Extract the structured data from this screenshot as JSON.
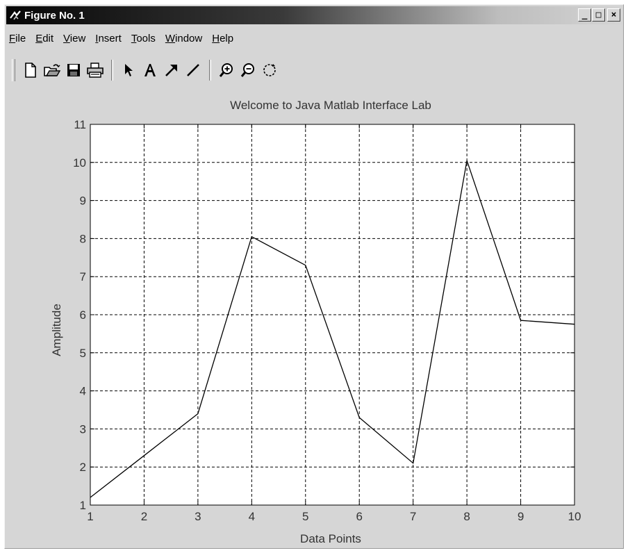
{
  "window": {
    "title": "Figure No. 1",
    "buttons": {
      "minimize": "_",
      "maximize": "□",
      "close": "×"
    }
  },
  "menu": [
    {
      "label": "File",
      "accel_index": 0
    },
    {
      "label": "Edit",
      "accel_index": 0
    },
    {
      "label": "View",
      "accel_index": 0
    },
    {
      "label": "Insert",
      "accel_index": 0
    },
    {
      "label": "Tools",
      "accel_index": 0
    },
    {
      "label": "Window",
      "accel_index": 0
    },
    {
      "label": "Help",
      "accel_index": 0
    }
  ],
  "toolbar": [
    {
      "name": "new-figure-button",
      "icon": "new-document-icon"
    },
    {
      "name": "open-file-button",
      "icon": "open-folder-icon"
    },
    {
      "name": "save-button",
      "icon": "save-icon"
    },
    {
      "name": "print-button",
      "icon": "print-icon"
    },
    {
      "name": "edit-plot-button",
      "icon": "pointer-arrow-icon"
    },
    {
      "name": "insert-text-button",
      "icon": "text-icon"
    },
    {
      "name": "insert-arrow-button",
      "icon": "arrow-icon"
    },
    {
      "name": "insert-line-button",
      "icon": "line-icon"
    },
    {
      "name": "zoom-in-button",
      "icon": "zoom-in-icon"
    },
    {
      "name": "zoom-out-button",
      "icon": "zoom-out-icon"
    },
    {
      "name": "rotate-3d-button",
      "icon": "rotate-icon"
    }
  ],
  "chart_data": {
    "type": "line",
    "title": "Welcome to Java Matlab Interface Lab",
    "xlabel": "Data Points",
    "ylabel": "Amplitude",
    "xlim": [
      1,
      10
    ],
    "ylim": [
      1,
      11
    ],
    "xticks": [
      1,
      2,
      3,
      4,
      5,
      6,
      7,
      8,
      9,
      10
    ],
    "yticks": [
      1,
      2,
      3,
      4,
      5,
      6,
      7,
      8,
      9,
      10,
      11
    ],
    "grid": true,
    "grid_style": "dashed",
    "series": [
      {
        "x": [
          1,
          2,
          3,
          4,
          5,
          6,
          7,
          8,
          9,
          10
        ],
        "values": [
          1.2,
          2.3,
          3.4,
          8.05,
          7.3,
          3.3,
          2.1,
          10.05,
          5.85,
          5.75
        ],
        "color": "#000000"
      }
    ]
  },
  "colors": {
    "window_bg": "#d6d6d6",
    "axes_bg": "#ffffff",
    "line": "#000000",
    "grid": "#000000",
    "text": "#333333"
  }
}
